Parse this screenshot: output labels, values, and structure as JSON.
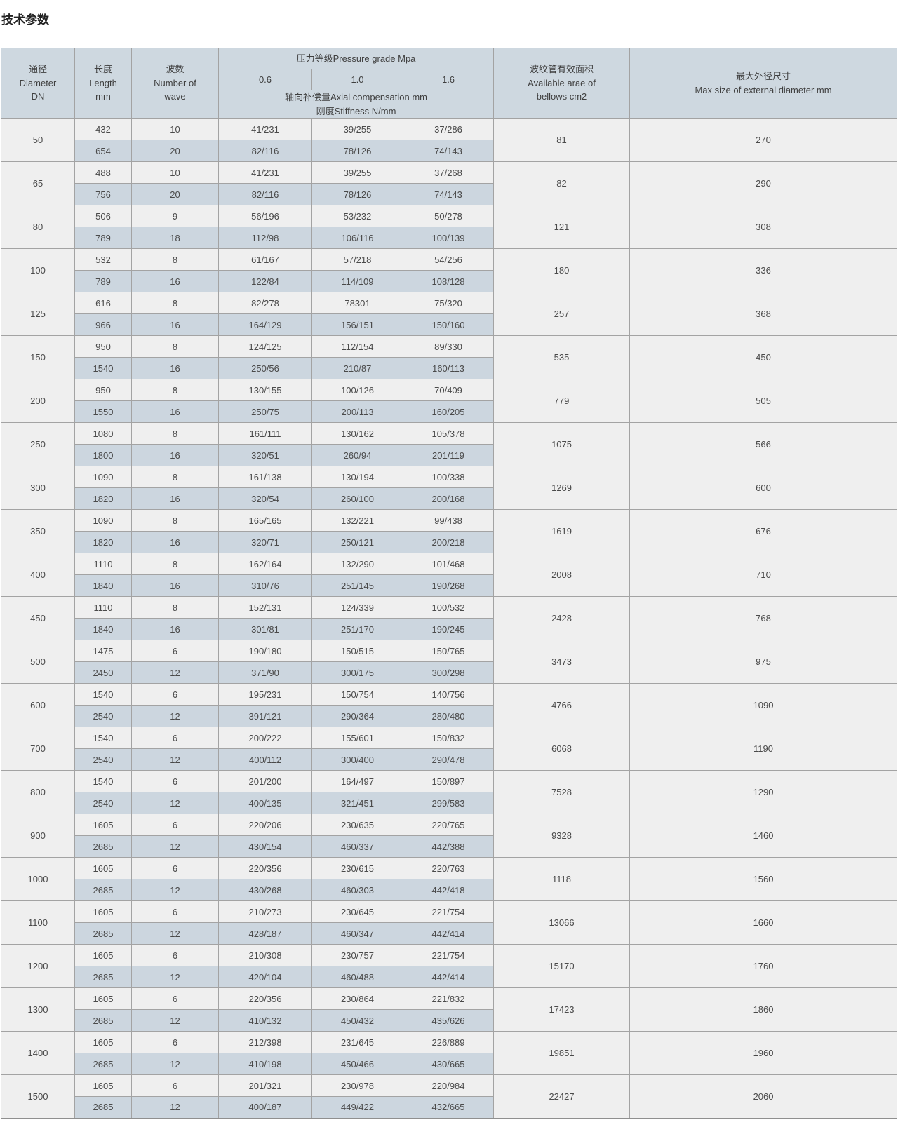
{
  "page_title": "技术参数",
  "table": {
    "headers": {
      "diameter": "通径\nDiameter\nDN",
      "length": "长度\nLength\nmm",
      "waves": "波数\nNumber of\nwave",
      "pressure_grade": "压力等级Pressure grade Mpa",
      "pressure_levels": [
        "0.6",
        "1.0",
        "1.6"
      ],
      "axial": "轴向补偿量Axial compensation mm\n刚度Stiffness N/mm",
      "area": "波纹管有效面积\nAvailable arae of\nbellows cm2",
      "max_diameter": "最大外径尺寸\nMax size of external diameter mm"
    },
    "rows": [
      {
        "dn": "50",
        "area": "81",
        "max": "270",
        "sub": [
          {
            "len": "432",
            "waves": "10",
            "p": [
              "41/231",
              "39/255",
              "37/286"
            ]
          },
          {
            "len": "654",
            "waves": "20",
            "p": [
              "82/116",
              "78/126",
              "74/143"
            ]
          }
        ]
      },
      {
        "dn": "65",
        "area": "82",
        "max": "290",
        "sub": [
          {
            "len": "488",
            "waves": "10",
            "p": [
              "41/231",
              "39/255",
              "37/268"
            ]
          },
          {
            "len": "756",
            "waves": "20",
            "p": [
              "82/116",
              "78/126",
              "74/143"
            ]
          }
        ]
      },
      {
        "dn": "80",
        "area": "121",
        "max": "308",
        "sub": [
          {
            "len": "506",
            "waves": "9",
            "p": [
              "56/196",
              "53/232",
              "50/278"
            ]
          },
          {
            "len": "789",
            "waves": "18",
            "p": [
              "112/98",
              "106/116",
              "100/139"
            ]
          }
        ]
      },
      {
        "dn": "100",
        "area": "180",
        "max": "336",
        "sub": [
          {
            "len": "532",
            "waves": "8",
            "p": [
              "61/167",
              "57/218",
              "54/256"
            ]
          },
          {
            "len": "789",
            "waves": "16",
            "p": [
              "122/84",
              "114/109",
              "108/128"
            ]
          }
        ]
      },
      {
        "dn": "125",
        "area": "257",
        "max": "368",
        "sub": [
          {
            "len": "616",
            "waves": "8",
            "p": [
              "82/278",
              "78301",
              "75/320"
            ]
          },
          {
            "len": "966",
            "waves": "16",
            "p": [
              "164/129",
              "156/151",
              "150/160"
            ]
          }
        ]
      },
      {
        "dn": "150",
        "area": "535",
        "max": "450",
        "sub": [
          {
            "len": "950",
            "waves": "8",
            "p": [
              "124/125",
              "112/154",
              "89/330"
            ]
          },
          {
            "len": "1540",
            "waves": "16",
            "p": [
              "250/56",
              "210/87",
              "160/113"
            ]
          }
        ]
      },
      {
        "dn": "200",
        "area": "779",
        "max": "505",
        "sub": [
          {
            "len": "950",
            "waves": "8",
            "p": [
              "130/155",
              "100/126",
              "70/409"
            ]
          },
          {
            "len": "1550",
            "waves": "16",
            "p": [
              "250/75",
              "200/113",
              "160/205"
            ]
          }
        ]
      },
      {
        "dn": "250",
        "area": "1075",
        "max": "566",
        "sub": [
          {
            "len": "1080",
            "waves": "8",
            "p": [
              "161/111",
              "130/162",
              "105/378"
            ]
          },
          {
            "len": "1800",
            "waves": "16",
            "p": [
              "320/51",
              "260/94",
              "201/119"
            ]
          }
        ]
      },
      {
        "dn": "300",
        "area": "1269",
        "max": "600",
        "sub": [
          {
            "len": "1090",
            "waves": "8",
            "p": [
              "161/138",
              "130/194",
              "100/338"
            ]
          },
          {
            "len": "1820",
            "waves": "16",
            "p": [
              "320/54",
              "260/100",
              "200/168"
            ]
          }
        ]
      },
      {
        "dn": "350",
        "area": "1619",
        "max": "676",
        "sub": [
          {
            "len": "1090",
            "waves": "8",
            "p": [
              "165/165",
              "132/221",
              "99/438"
            ]
          },
          {
            "len": "1820",
            "waves": "16",
            "p": [
              "320/71",
              "250/121",
              "200/218"
            ]
          }
        ]
      },
      {
        "dn": "400",
        "area": "2008",
        "max": "710",
        "sub": [
          {
            "len": "1110",
            "waves": "8",
            "p": [
              "162/164",
              "132/290",
              "101/468"
            ]
          },
          {
            "len": "1840",
            "waves": "16",
            "p": [
              "310/76",
              "251/145",
              "190/268"
            ]
          }
        ]
      },
      {
        "dn": "450",
        "area": "2428",
        "max": "768",
        "sub": [
          {
            "len": "1110",
            "waves": "8",
            "p": [
              "152/131",
              "124/339",
              "100/532"
            ]
          },
          {
            "len": "1840",
            "waves": "16",
            "p": [
              "301/81",
              "251/170",
              "190/245"
            ]
          }
        ]
      },
      {
        "dn": "500",
        "area": "3473",
        "max": "975",
        "sub": [
          {
            "len": "1475",
            "waves": "6",
            "p": [
              "190/180",
              "150/515",
              "150/765"
            ]
          },
          {
            "len": "2450",
            "waves": "12",
            "p": [
              "371/90",
              "300/175",
              "300/298"
            ]
          }
        ]
      },
      {
        "dn": "600",
        "area": "4766",
        "max": "1090",
        "sub": [
          {
            "len": "1540",
            "waves": "6",
            "p": [
              "195/231",
              "150/754",
              "140/756"
            ]
          },
          {
            "len": "2540",
            "waves": "12",
            "p": [
              "391/121",
              "290/364",
              "280/480"
            ]
          }
        ]
      },
      {
        "dn": "700",
        "area": "6068",
        "max": "1190",
        "sub": [
          {
            "len": "1540",
            "waves": "6",
            "p": [
              "200/222",
              "155/601",
              "150/832"
            ]
          },
          {
            "len": "2540",
            "waves": "12",
            "p": [
              "400/112",
              "300/400",
              "290/478"
            ]
          }
        ]
      },
      {
        "dn": "800",
        "area": "7528",
        "max": "1290",
        "sub": [
          {
            "len": "1540",
            "waves": "6",
            "p": [
              "201/200",
              "164/497",
              "150/897"
            ]
          },
          {
            "len": "2540",
            "waves": "12",
            "p": [
              "400/135",
              "321/451",
              "299/583"
            ]
          }
        ]
      },
      {
        "dn": "900",
        "area": "9328",
        "max": "1460",
        "sub": [
          {
            "len": "1605",
            "waves": "6",
            "p": [
              "220/206",
              "230/635",
              "220/765"
            ]
          },
          {
            "len": "2685",
            "waves": "12",
            "p": [
              "430/154",
              "460/337",
              "442/388"
            ]
          }
        ]
      },
      {
        "dn": "1000",
        "area": "1118",
        "max": "1560",
        "sub": [
          {
            "len": "1605",
            "waves": "6",
            "p": [
              "220/356",
              "230/615",
              "220/763"
            ]
          },
          {
            "len": "2685",
            "waves": "12",
            "p": [
              "430/268",
              "460/303",
              "442/418"
            ]
          }
        ]
      },
      {
        "dn": "1100",
        "area": "13066",
        "max": "1660",
        "sub": [
          {
            "len": "1605",
            "waves": "6",
            "p": [
              "210/273",
              "230/645",
              "221/754"
            ]
          },
          {
            "len": "2685",
            "waves": "12",
            "p": [
              "428/187",
              "460/347",
              "442/414"
            ]
          }
        ]
      },
      {
        "dn": "1200",
        "area": "15170",
        "max": "1760",
        "sub": [
          {
            "len": "1605",
            "waves": "6",
            "p": [
              "210/308",
              "230/757",
              "221/754"
            ]
          },
          {
            "len": "2685",
            "waves": "12",
            "p": [
              "420/104",
              "460/488",
              "442/414"
            ]
          }
        ]
      },
      {
        "dn": "1300",
        "area": "17423",
        "max": "1860",
        "sub": [
          {
            "len": "1605",
            "waves": "6",
            "p": [
              "220/356",
              "230/864",
              "221/832"
            ]
          },
          {
            "len": "2685",
            "waves": "12",
            "p": [
              "410/132",
              "450/432",
              "435/626"
            ]
          }
        ]
      },
      {
        "dn": "1400",
        "area": "19851",
        "max": "1960",
        "sub": [
          {
            "len": "1605",
            "waves": "6",
            "p": [
              "212/398",
              "231/645",
              "226/889"
            ]
          },
          {
            "len": "2685",
            "waves": "12",
            "p": [
              "410/198",
              "450/466",
              "430/665"
            ]
          }
        ]
      },
      {
        "dn": "1500",
        "area": "22427",
        "max": "2060",
        "sub": [
          {
            "len": "1605",
            "waves": "6",
            "p": [
              "201/321",
              "230/978",
              "220/984"
            ]
          },
          {
            "len": "2685",
            "waves": "12",
            "p": [
              "400/187",
              "449/422",
              "432/665"
            ]
          }
        ]
      }
    ]
  },
  "colors": {
    "header_bg": "#ced8e0",
    "row_alt_bg": "#ccd6df",
    "row_bg": "#efefef",
    "border": "#a3a3a3",
    "text": "#4a4a4a"
  }
}
